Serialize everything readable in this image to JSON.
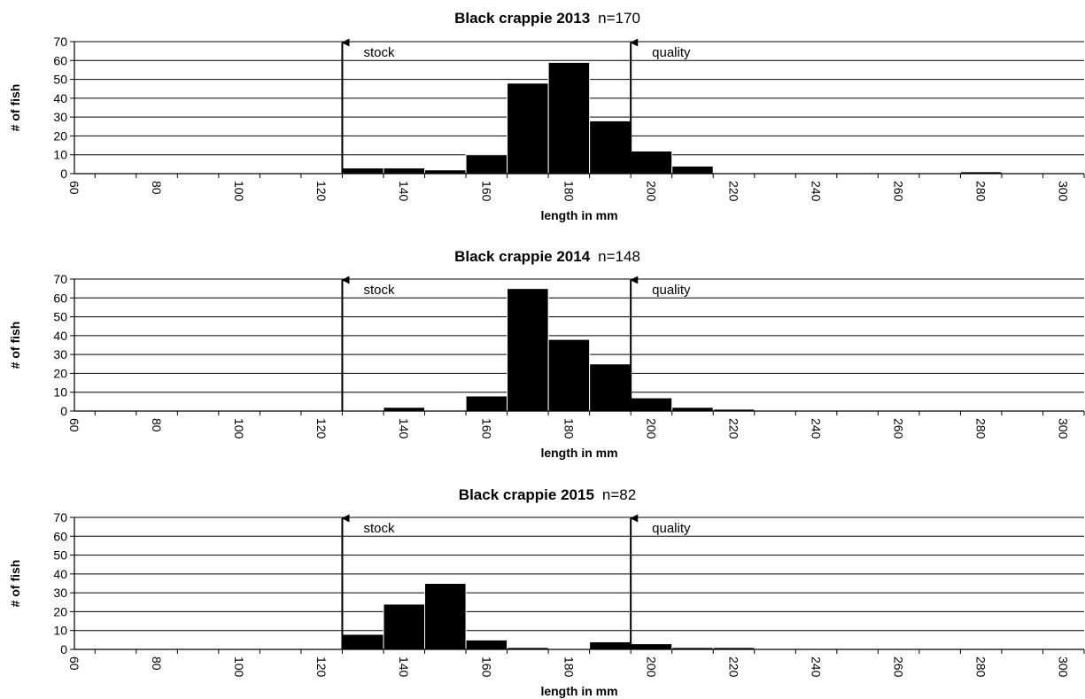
{
  "chart_data": [
    {
      "type": "bar",
      "title": "Black crappie 2013",
      "subtitle": "n=170",
      "xlabel": "length in mm",
      "ylabel": "# of fish",
      "ylim": [
        0,
        70
      ],
      "yticks": [
        0,
        10,
        20,
        30,
        40,
        50,
        60,
        70
      ],
      "xticks": [
        60,
        80,
        100,
        120,
        140,
        160,
        180,
        200,
        220,
        240,
        260,
        280,
        300
      ],
      "categories": [
        60,
        70,
        80,
        90,
        100,
        110,
        120,
        130,
        140,
        150,
        160,
        170,
        180,
        190,
        200,
        210,
        220,
        230,
        240,
        250,
        260,
        270,
        280,
        290,
        300
      ],
      "values": [
        0,
        0,
        0,
        0,
        0,
        0,
        0,
        3,
        3,
        2,
        10,
        48,
        59,
        28,
        12,
        4,
        0,
        0,
        0,
        0,
        0,
        0,
        1,
        0,
        0
      ],
      "grid": true,
      "annotations": [
        {
          "text": "stock",
          "x": 125
        },
        {
          "text": "quality",
          "x": 195
        }
      ]
    },
    {
      "type": "bar",
      "title": "Black crappie 2014",
      "subtitle": "n=148",
      "xlabel": "length in mm",
      "ylabel": "# of fish",
      "ylim": [
        0,
        70
      ],
      "yticks": [
        0,
        10,
        20,
        30,
        40,
        50,
        60,
        70
      ],
      "xticks": [
        60,
        80,
        100,
        120,
        140,
        160,
        180,
        200,
        220,
        240,
        260,
        280,
        300
      ],
      "categories": [
        60,
        70,
        80,
        90,
        100,
        110,
        120,
        130,
        140,
        150,
        160,
        170,
        180,
        190,
        200,
        210,
        220,
        230,
        240,
        250,
        260,
        270,
        280,
        290,
        300
      ],
      "values": [
        0,
        0,
        0,
        0,
        0,
        0,
        0,
        0,
        2,
        0,
        8,
        65,
        38,
        25,
        7,
        2,
        1,
        0,
        0,
        0,
        0,
        0,
        0,
        0,
        0
      ],
      "grid": true,
      "annotations": [
        {
          "text": "stock",
          "x": 125
        },
        {
          "text": "quality",
          "x": 195
        }
      ]
    },
    {
      "type": "bar",
      "title": "Black crappie 2015",
      "subtitle": "n=82",
      "xlabel": "length in mm",
      "ylabel": "# of fish",
      "ylim": [
        0,
        70
      ],
      "yticks": [
        0,
        10,
        20,
        30,
        40,
        50,
        60,
        70
      ],
      "xticks": [
        60,
        80,
        100,
        120,
        140,
        160,
        180,
        200,
        220,
        240,
        260,
        280,
        300
      ],
      "categories": [
        60,
        70,
        80,
        90,
        100,
        110,
        120,
        130,
        140,
        150,
        160,
        170,
        180,
        190,
        200,
        210,
        220,
        230,
        240,
        250,
        260,
        270,
        280,
        290,
        300
      ],
      "values": [
        0,
        0,
        0,
        0,
        0,
        0,
        0,
        8,
        24,
        35,
        5,
        1,
        0,
        4,
        3,
        1,
        1,
        0,
        0,
        0,
        0,
        0,
        0,
        0,
        0
      ],
      "grid": true,
      "annotations": [
        {
          "text": "stock",
          "x": 125
        },
        {
          "text": "quality",
          "x": 195
        }
      ]
    }
  ]
}
